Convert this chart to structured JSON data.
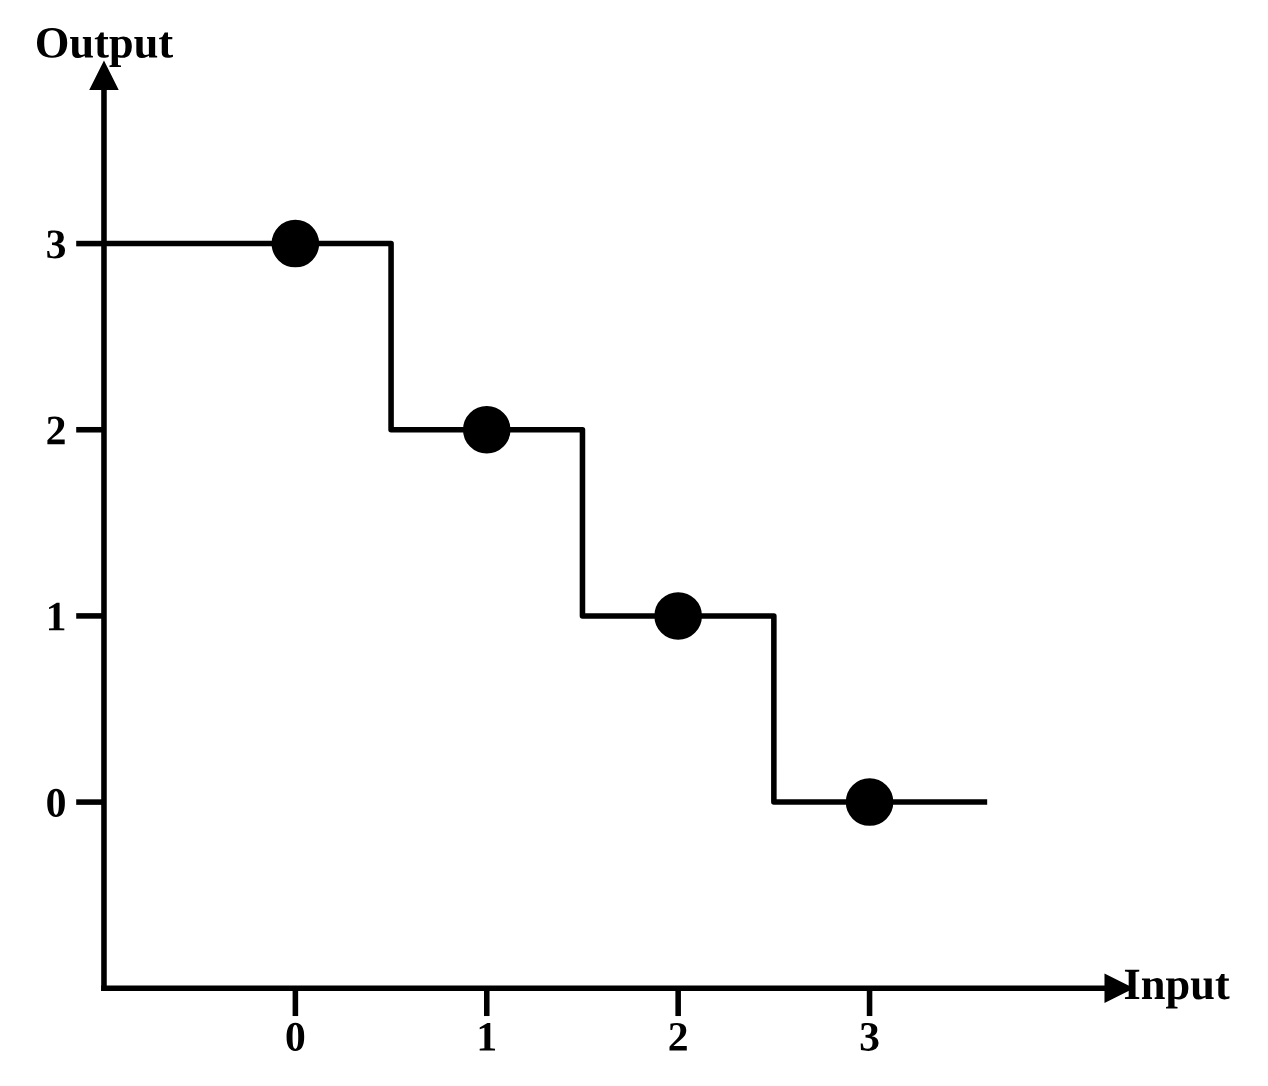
{
  "chart_data": {
    "type": "step",
    "xlabel": "Input",
    "ylabel": "Output",
    "xlim": [
      -1,
      4.3
    ],
    "ylim": [
      -1,
      3.9
    ],
    "xticks": [
      0,
      1,
      2,
      3
    ],
    "yticks": [
      0,
      1,
      2,
      3
    ],
    "grid": false,
    "series": [
      {
        "color": "#000000",
        "x": [
          -1,
          0.5,
          1.5,
          2.5,
          3.6
        ],
        "values": [
          3,
          2,
          1,
          0,
          0
        ],
        "marker": "none",
        "line_style": "solid"
      },
      {
        "type": "scatter",
        "color": "#000000",
        "x": [
          0,
          1,
          2,
          3
        ],
        "values": [
          3,
          2,
          1,
          0
        ],
        "marker": "circle"
      }
    ]
  }
}
